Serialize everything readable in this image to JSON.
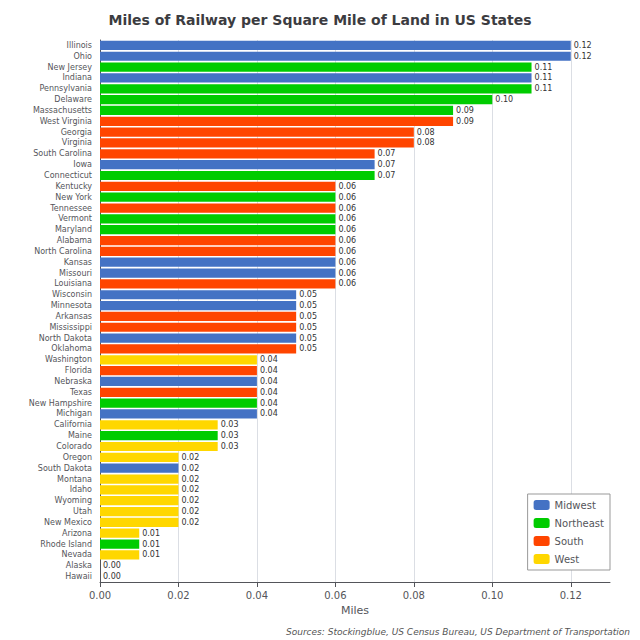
{
  "chart_data": {
    "type": "bar",
    "orientation": "horizontal",
    "title": "Miles of Railway per Square Mile of Land in US States",
    "xlabel": "Miles",
    "annotations": [
      "Sources: Stockingblue, US Census Bureau, US Department of Transportation"
    ],
    "categories": [
      "Illinois",
      "Ohio",
      "New Jersey",
      "Indiana",
      "Pennsylvania",
      "Delaware",
      "Massachusetts",
      "West Virginia",
      "Georgia",
      "Virginia",
      "South Carolina",
      "Iowa",
      "Connecticut",
      "Kentucky",
      "New York",
      "Tennessee",
      "Vermont",
      "Maryland",
      "Alabama",
      "North Carolina",
      "Kansas",
      "Missouri",
      "Louisiana",
      "Wisconsin",
      "Minnesota",
      "Arkansas",
      "Mississippi",
      "North Dakota",
      "Oklahoma",
      "Washington",
      "Florida",
      "Nebraska",
      "Texas",
      "New Hampshire",
      "Michigan",
      "California",
      "Maine",
      "Colorado",
      "Oregon",
      "South Dakota",
      "Montana",
      "Idaho",
      "Wyoming",
      "Utah",
      "New Mexico",
      "Arizona",
      "Rhode Island",
      "Nevada",
      "Alaska",
      "Hawaii"
    ],
    "series": [
      {
        "name": "Midwest",
        "color": "#4472C4",
        "values": [
          0.12,
          0.12,
          null,
          0.11,
          null,
          null,
          null,
          null,
          null,
          null,
          null,
          0.07,
          null,
          null,
          null,
          null,
          null,
          null,
          null,
          null,
          0.06,
          0.06,
          null,
          0.05,
          0.05,
          null,
          null,
          0.05,
          null,
          null,
          null,
          0.04,
          null,
          null,
          0.04,
          null,
          null,
          null,
          null,
          0.02,
          null,
          null,
          null,
          null,
          null,
          null,
          null,
          null,
          null,
          null
        ],
        "value_labels": [
          "0.12",
          "0.12",
          null,
          "0.11",
          null,
          null,
          null,
          null,
          null,
          null,
          null,
          "0.07",
          null,
          null,
          null,
          null,
          null,
          null,
          null,
          null,
          "0.06",
          "0.06",
          null,
          "0.05",
          "0.05",
          null,
          null,
          "0.05",
          null,
          null,
          null,
          "0.04",
          null,
          null,
          "0.04",
          null,
          null,
          null,
          null,
          "0.02",
          null,
          null,
          null,
          null,
          null,
          null,
          null,
          null,
          null,
          null
        ]
      },
      {
        "name": "Northeast",
        "color": "#00CC00",
        "values": [
          null,
          null,
          0.11,
          null,
          0.11,
          0.1,
          0.09,
          null,
          null,
          null,
          null,
          null,
          0.07,
          null,
          0.06,
          null,
          0.06,
          0.06,
          null,
          null,
          null,
          null,
          null,
          null,
          null,
          null,
          null,
          null,
          null,
          null,
          null,
          null,
          null,
          0.04,
          null,
          null,
          0.03,
          null,
          null,
          null,
          null,
          null,
          null,
          null,
          null,
          null,
          0.01,
          null,
          null,
          null
        ],
        "value_labels": [
          null,
          null,
          "0.11",
          null,
          "0.11",
          "0.10",
          "0.09",
          null,
          null,
          null,
          null,
          null,
          "0.07",
          null,
          "0.06",
          null,
          "0.06",
          "0.06",
          null,
          null,
          null,
          null,
          null,
          null,
          null,
          null,
          null,
          null,
          null,
          null,
          null,
          null,
          null,
          "0.04",
          null,
          null,
          "0.03",
          null,
          null,
          null,
          null,
          null,
          null,
          null,
          null,
          null,
          "0.01",
          null,
          null,
          null
        ]
      },
      {
        "name": "South",
        "color": "#FF4500",
        "values": [
          null,
          null,
          null,
          null,
          null,
          null,
          null,
          0.09,
          0.08,
          0.08,
          0.07,
          null,
          null,
          0.06,
          null,
          0.06,
          null,
          null,
          0.06,
          0.06,
          null,
          null,
          0.06,
          null,
          null,
          0.05,
          0.05,
          null,
          0.05,
          null,
          0.04,
          null,
          0.04,
          null,
          null,
          null,
          null,
          null,
          null,
          null,
          null,
          null,
          null,
          null,
          null,
          null,
          null,
          null,
          null,
          null
        ],
        "value_labels": [
          null,
          null,
          null,
          null,
          null,
          null,
          null,
          "0.09",
          "0.08",
          "0.08",
          "0.07",
          null,
          null,
          "0.06",
          null,
          "0.06",
          null,
          null,
          "0.06",
          "0.06",
          null,
          null,
          "0.06",
          null,
          null,
          "0.05",
          "0.05",
          null,
          "0.05",
          null,
          "0.04",
          null,
          "0.04",
          null,
          null,
          null,
          null,
          null,
          null,
          null,
          null,
          null,
          null,
          null,
          null,
          null,
          null,
          null,
          null,
          null
        ]
      },
      {
        "name": "West",
        "color": "#FFD700",
        "values": [
          null,
          null,
          null,
          null,
          null,
          null,
          null,
          null,
          null,
          null,
          null,
          null,
          null,
          null,
          null,
          null,
          null,
          null,
          null,
          null,
          null,
          null,
          null,
          null,
          null,
          null,
          null,
          null,
          null,
          0.04,
          null,
          null,
          null,
          null,
          null,
          0.03,
          null,
          0.03,
          0.02,
          null,
          0.02,
          0.02,
          0.02,
          0.02,
          0.02,
          0.01,
          null,
          0.01,
          0.0,
          0.0
        ],
        "value_labels": [
          null,
          null,
          null,
          null,
          null,
          null,
          null,
          null,
          null,
          null,
          null,
          null,
          null,
          null,
          null,
          null,
          null,
          null,
          null,
          null,
          null,
          null,
          null,
          null,
          null,
          null,
          null,
          null,
          null,
          "0.04",
          null,
          null,
          null,
          null,
          null,
          "0.03",
          null,
          "0.03",
          "0.02",
          null,
          "0.02",
          "0.02",
          "0.02",
          "0.02",
          "0.02",
          "0.01",
          null,
          "0.01",
          "0.00",
          "0.00"
        ]
      }
    ],
    "xlim": [
      0,
      0.13
    ],
    "xticks": [
      {
        "value": 0,
        "label": "0.00"
      },
      0.02,
      0.04,
      0.06,
      0.08,
      {
        "value": 0.1,
        "label": "0.10"
      },
      0.12
    ],
    "grid": true,
    "legend": "lower right",
    "data_labels": true
  }
}
